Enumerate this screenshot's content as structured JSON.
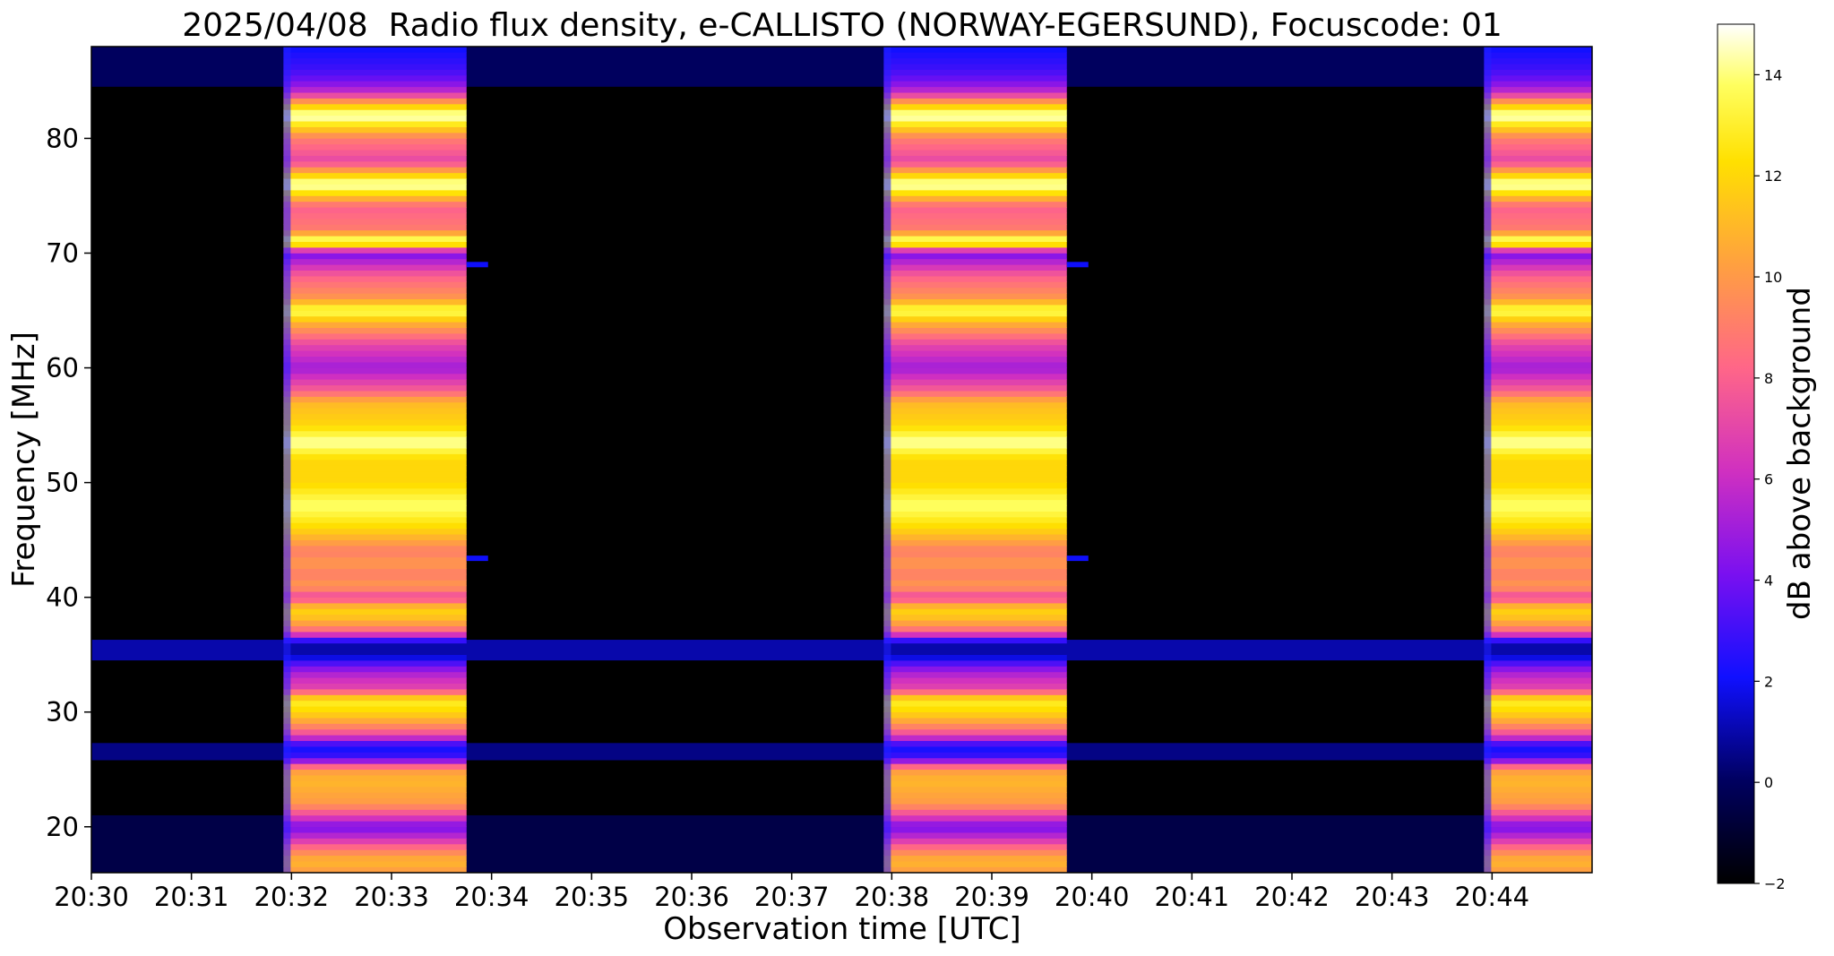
{
  "chart_data": {
    "type": "heatmap",
    "title": "2025/04/08  Radio flux density, e-CALLISTO (NORWAY-EGERSUND), Focuscode: 01",
    "xlabel": "Observation time [UTC]",
    "ylabel": "Frequency [MHz]",
    "colorbar_label": "dB above background",
    "colormap": "gnuplot2",
    "x_range_minutes": [
      0,
      15
    ],
    "ylim": [
      16,
      88
    ],
    "clim": [
      -2,
      15
    ],
    "x_ticks": [
      {
        "value": 0,
        "label": "20:30"
      },
      {
        "value": 1,
        "label": "20:31"
      },
      {
        "value": 2,
        "label": "20:32"
      },
      {
        "value": 3,
        "label": "20:33"
      },
      {
        "value": 4,
        "label": "20:34"
      },
      {
        "value": 5,
        "label": "20:35"
      },
      {
        "value": 6,
        "label": "20:36"
      },
      {
        "value": 7,
        "label": "20:37"
      },
      {
        "value": 8,
        "label": "20:38"
      },
      {
        "value": 9,
        "label": "20:39"
      },
      {
        "value": 10,
        "label": "20:40"
      },
      {
        "value": 11,
        "label": "20:41"
      },
      {
        "value": 12,
        "label": "20:42"
      },
      {
        "value": 13,
        "label": "20:43"
      },
      {
        "value": 14,
        "label": "20:44"
      }
    ],
    "y_ticks": [
      {
        "value": 20,
        "label": "20"
      },
      {
        "value": 30,
        "label": "30"
      },
      {
        "value": 40,
        "label": "40"
      },
      {
        "value": 50,
        "label": "50"
      },
      {
        "value": 60,
        "label": "60"
      },
      {
        "value": 70,
        "label": "70"
      },
      {
        "value": 80,
        "label": "80"
      }
    ],
    "colorbar_ticks": [
      {
        "value": -2,
        "label": "−2"
      },
      {
        "value": 0,
        "label": "0"
      },
      {
        "value": 2,
        "label": "2"
      },
      {
        "value": 4,
        "label": "4"
      },
      {
        "value": 6,
        "label": "6"
      },
      {
        "value": 8,
        "label": "8"
      },
      {
        "value": 10,
        "label": "10"
      },
      {
        "value": 12,
        "label": "12"
      },
      {
        "value": 14,
        "label": "14"
      }
    ],
    "active_periods_minutes": [
      [
        1.92,
        3.75
      ],
      [
        7.92,
        9.75
      ],
      [
        13.92,
        15.0
      ]
    ],
    "active_spectrum_db": [
      {
        "f": 16,
        "db": 10
      },
      {
        "f": 17,
        "db": 11
      },
      {
        "f": 18,
        "db": 9
      },
      {
        "f": 19,
        "db": 6
      },
      {
        "f": 20,
        "db": 4
      },
      {
        "f": 21,
        "db": 7
      },
      {
        "f": 22,
        "db": 10
      },
      {
        "f": 24,
        "db": 11
      },
      {
        "f": 25,
        "db": 10
      },
      {
        "f": 26,
        "db": 3
      },
      {
        "f": 27,
        "db": 2
      },
      {
        "f": 28,
        "db": 7
      },
      {
        "f": 29,
        "db": 10
      },
      {
        "f": 30,
        "db": 12
      },
      {
        "f": 31,
        "db": 13
      },
      {
        "f": 32,
        "db": 7
      },
      {
        "f": 33,
        "db": 6
      },
      {
        "f": 34,
        "db": 4
      },
      {
        "f": 35,
        "db": 1
      },
      {
        "f": 36,
        "db": 1
      },
      {
        "f": 37,
        "db": 8
      },
      {
        "f": 38,
        "db": 11
      },
      {
        "f": 39,
        "db": 12
      },
      {
        "f": 40,
        "db": 7
      },
      {
        "f": 41,
        "db": 10
      },
      {
        "f": 42,
        "db": 9
      },
      {
        "f": 43,
        "db": 10
      },
      {
        "f": 44,
        "db": 9
      },
      {
        "f": 46,
        "db": 12
      },
      {
        "f": 48,
        "db": 14
      },
      {
        "f": 50,
        "db": 12
      },
      {
        "f": 52,
        "db": 12
      },
      {
        "f": 53.5,
        "db": 14.5
      },
      {
        "f": 55,
        "db": 12
      },
      {
        "f": 57,
        "db": 11
      },
      {
        "f": 58,
        "db": 8
      },
      {
        "f": 60,
        "db": 5
      },
      {
        "f": 62,
        "db": 7
      },
      {
        "f": 64,
        "db": 11
      },
      {
        "f": 65,
        "db": 14
      },
      {
        "f": 66,
        "db": 10
      },
      {
        "f": 68,
        "db": 8
      },
      {
        "f": 70,
        "db": 4
      },
      {
        "f": 71,
        "db": 15
      },
      {
        "f": 72,
        "db": 9
      },
      {
        "f": 74,
        "db": 8
      },
      {
        "f": 76,
        "db": 15
      },
      {
        "f": 77,
        "db": 11
      },
      {
        "f": 78,
        "db": 7
      },
      {
        "f": 80,
        "db": 9
      },
      {
        "f": 82,
        "db": 15
      },
      {
        "f": 83,
        "db": 11
      },
      {
        "f": 84,
        "db": 6
      },
      {
        "f": 85,
        "db": 4
      },
      {
        "f": 86,
        "db": 3
      },
      {
        "f": 88,
        "db": 2
      }
    ],
    "quiet_bands": [
      {
        "f_min": 34.5,
        "f_max": 36.3,
        "db": 1
      },
      {
        "f_min": 25.8,
        "f_max": 27.3,
        "db": 0.5
      },
      {
        "f_min": 16,
        "f_max": 21,
        "db": -0.5
      },
      {
        "f_min": 84.5,
        "f_max": 88,
        "db": 0
      }
    ],
    "markers": [
      {
        "t": 3.75,
        "f": 69.0,
        "db": 2
      },
      {
        "t": 3.75,
        "f": 43.4,
        "db": 2
      },
      {
        "t": 9.75,
        "f": 69.0,
        "db": 2
      },
      {
        "t": 9.75,
        "f": 43.4,
        "db": 2
      }
    ]
  }
}
